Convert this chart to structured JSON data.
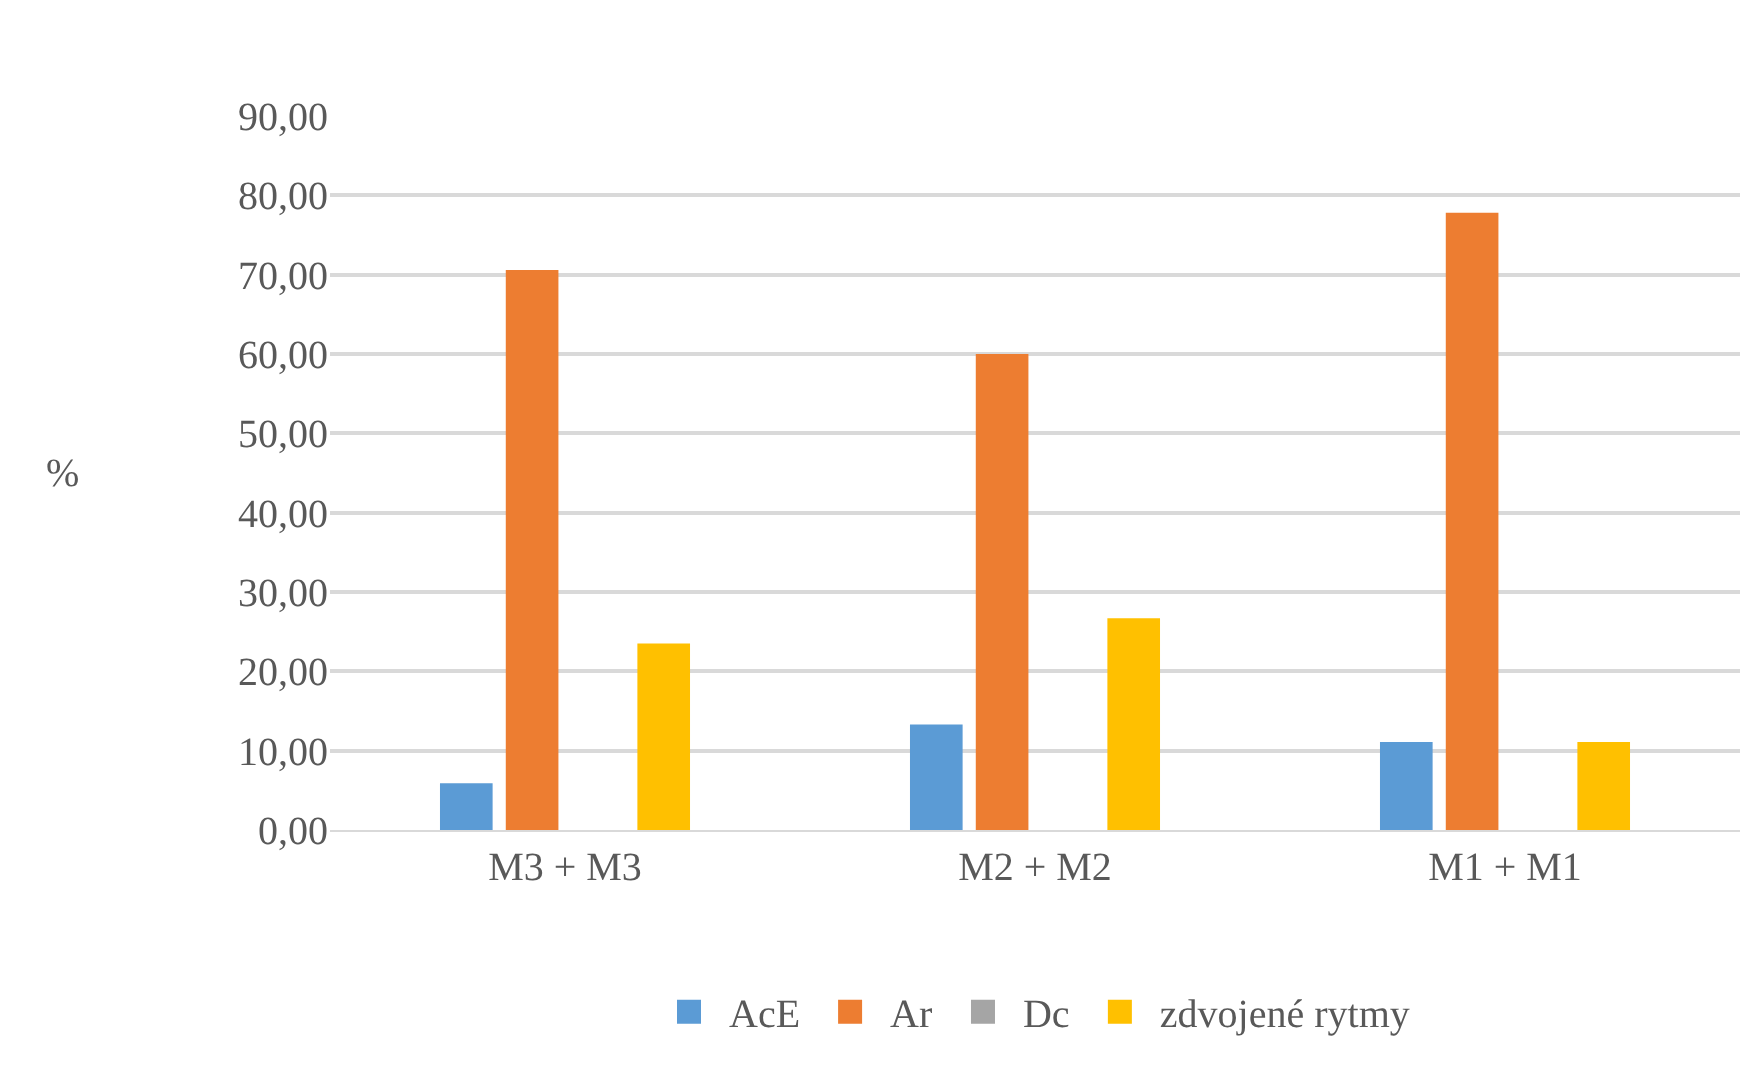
{
  "chart_data": {
    "type": "bar",
    "ylabel": "%",
    "categories": [
      "M3 + M3",
      "M2 + M2",
      "M1 + M1"
    ],
    "series": [
      {
        "name": "AcE",
        "color": "#5b9bd5",
        "values": [
          5.9,
          13.3,
          11.1
        ]
      },
      {
        "name": "Ar",
        "color": "#ed7d31",
        "values": [
          70.6,
          60,
          77.8
        ]
      },
      {
        "name": "Dc",
        "color": "#a5a5a5",
        "values": [
          0,
          0,
          0
        ]
      },
      {
        "name": "zdvojené rytmy",
        "color": "#ffc000",
        "values": [
          23.5,
          26.7,
          11.1
        ]
      }
    ],
    "ylim": [
      0,
      90
    ],
    "yticks": [
      {
        "value": 0,
        "label": "0,00"
      },
      {
        "value": 10,
        "label": "10,00"
      },
      {
        "value": 20,
        "label": "20,00"
      },
      {
        "value": 30,
        "label": "30,00"
      },
      {
        "value": 40,
        "label": "40,00"
      },
      {
        "value": 50,
        "label": "50,00"
      },
      {
        "value": 60,
        "label": "60,00"
      },
      {
        "value": 70,
        "label": "70,00"
      },
      {
        "value": 80,
        "label": "80,00"
      },
      {
        "value": 90,
        "label": "90,00"
      }
    ],
    "grid": "y",
    "legend": "bottom"
  }
}
